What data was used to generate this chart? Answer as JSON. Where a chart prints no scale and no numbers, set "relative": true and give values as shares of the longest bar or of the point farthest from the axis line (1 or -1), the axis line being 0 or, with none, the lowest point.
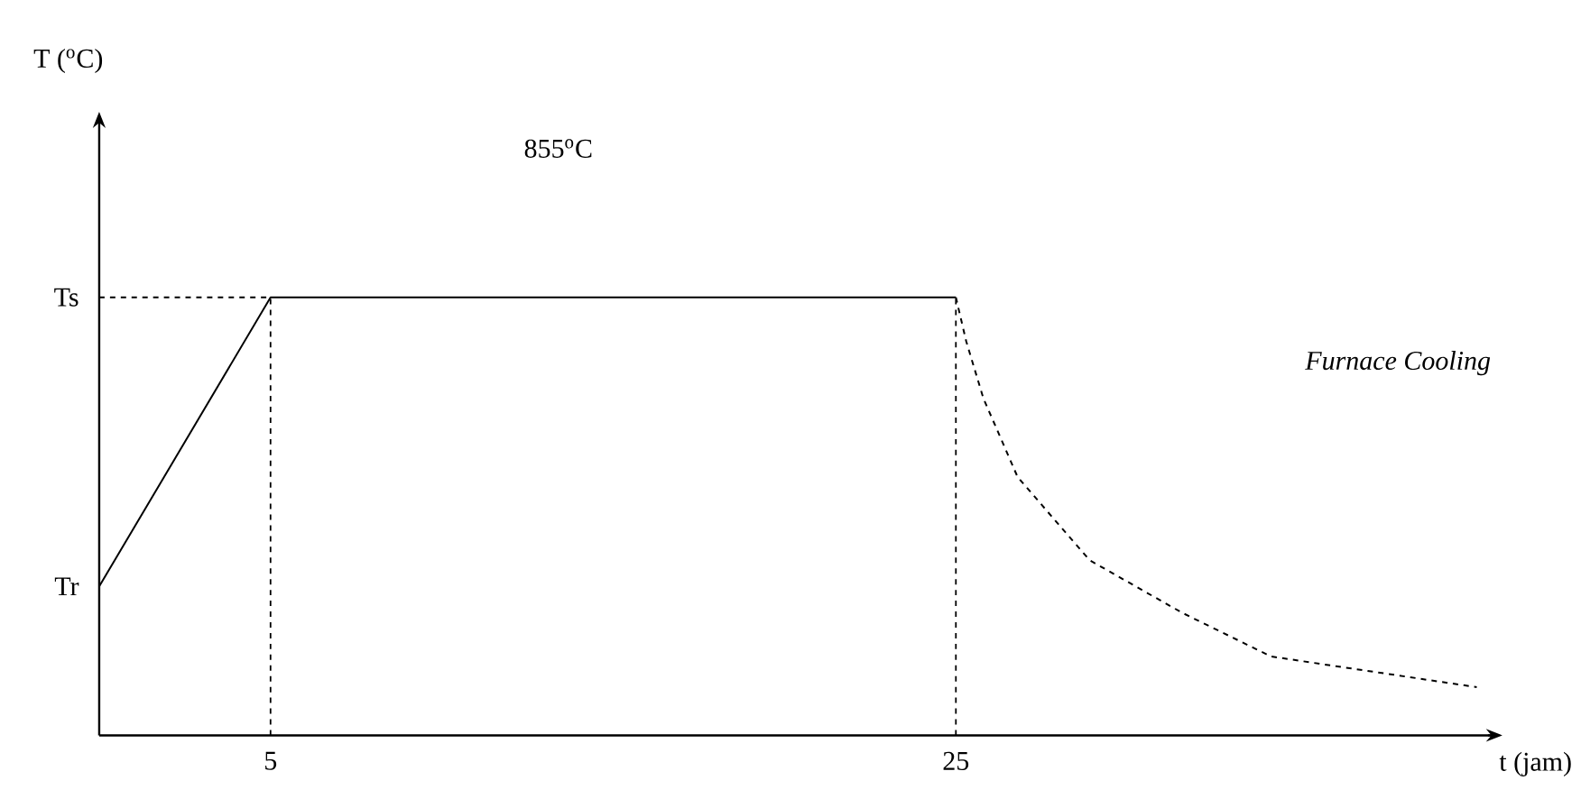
{
  "chart_data": {
    "type": "line",
    "relative": true,
    "xlabel": "t (jam)",
    "xlim": [
      0,
      40.8
    ],
    "xticks": [
      5,
      25
    ],
    "grid": false,
    "marker": "none",
    "series": [
      {
        "color": "#000000",
        "line_style": "solid",
        "x": [
          0,
          5,
          25
        ],
        "values": [
          0.34,
          1,
          1
        ]
      },
      {
        "color": "#000000",
        "line_style": "dashed",
        "x": [
          25,
          25.3,
          25.8,
          26.8,
          28.9,
          31.6,
          34.2,
          40.2
        ],
        "values": [
          1,
          0.9,
          0.77,
          0.59,
          0.4,
          0.28,
          0.18,
          0.11
        ]
      }
    ],
    "ref_lines": [
      {
        "axis": "y",
        "value": 1,
        "line_style": "dashed",
        "color": "#000000"
      },
      {
        "axis": "x",
        "value": 5,
        "line_style": "dashed",
        "color": "#000000"
      },
      {
        "axis": "x",
        "value": 25,
        "line_style": "dashed",
        "color": "#000000"
      }
    ],
    "annotations": [
      {
        "text": "Ts",
        "x": 0,
        "y": 1
      },
      {
        "text": "Tr",
        "x": 0,
        "y": 0.34
      },
      "T ($^{o}$C)",
      "855$^{o}$C",
      "*Furnace Cooling*"
    ]
  }
}
